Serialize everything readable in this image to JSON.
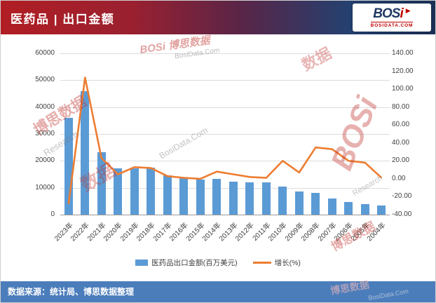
{
  "header": {
    "title": "医药品 | 出口金额",
    "logo": {
      "bos": "BOS",
      "i": "i",
      "subtext": "BOSIDATA.COM"
    }
  },
  "footer": {
    "source": "数据来源：统计局、博思数据整理"
  },
  "colors": {
    "bar": "#5B9BD5",
    "line": "#ED7D31",
    "header_red": "#B01E23",
    "header_navy": "#1F3864",
    "footer_bg": "#4B7DBB",
    "axis_text": "#404040"
  },
  "watermarks": [
    "BOSi 博思数据",
    "博思数据",
    "Research",
    "BosiData.Com",
    "BOSi",
    "博思数据",
    "数据",
    "数据",
    "BosiData.Com",
    "Research",
    "博思数据",
    "BosiData.Com"
  ],
  "chart_data": {
    "type": "bar+line",
    "title": "医药品 | 出口金额",
    "grid": true,
    "legend_position": "bottom",
    "categories": [
      "2023年",
      "2022年",
      "2021年",
      "2020年",
      "2019年",
      "2018年",
      "2017年",
      "2016年",
      "2015年",
      "2014年",
      "2013年",
      "2012年",
      "2011年",
      "2010年",
      "2009年",
      "2008年",
      "2007年",
      "2006年",
      "2005年",
      "2004年"
    ],
    "series": [
      {
        "name": "医药品出口金额(百万美元)",
        "type": "bar",
        "axis": "left",
        "values": [
          36000,
          46000,
          23200,
          17100,
          17300,
          17600,
          14500,
          13800,
          13100,
          13400,
          12200,
          11900,
          12000,
          10400,
          8600,
          8000,
          6100,
          4800,
          3900,
          3300
        ]
      },
      {
        "name": "增长(%)",
        "type": "line",
        "axis": "right",
        "values": [
          -28,
          113,
          23,
          5,
          13,
          12,
          3,
          1,
          0,
          8,
          5,
          2,
          1,
          20,
          7,
          35,
          33,
          20,
          18,
          1
        ]
      }
    ],
    "left_axis": {
      "min": 0,
      "max": 60000,
      "step": 10000,
      "ticks": [
        "60000",
        "50000",
        "40000",
        "30000",
        "20000",
        "10000",
        "0"
      ]
    },
    "right_axis": {
      "min": -40,
      "max": 140,
      "step": 20,
      "ticks": [
        "140.00",
        "120.00",
        "100.00",
        "80.00",
        "60.00",
        "40.00",
        "20.00",
        "0.00",
        "-20.00",
        "-40.00"
      ]
    }
  }
}
